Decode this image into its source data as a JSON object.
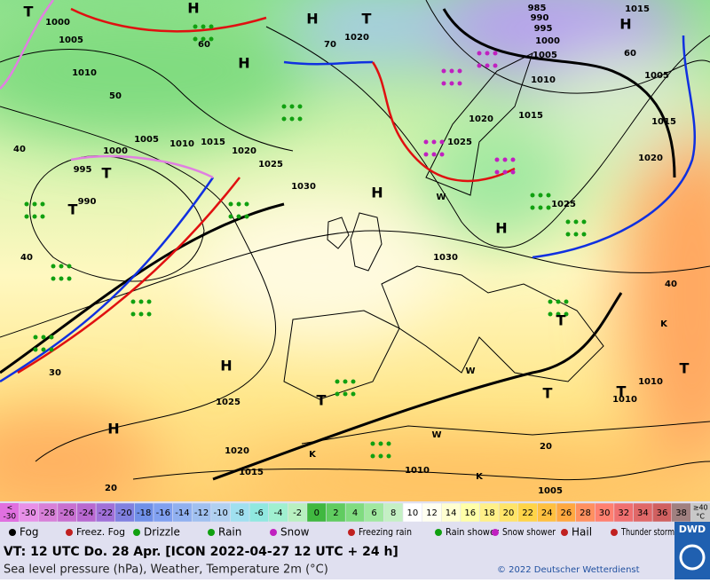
{
  "map": {
    "labels": [
      "1000",
      "1005",
      "1010",
      "50",
      "40",
      "1005",
      "1010",
      "1015",
      "1020",
      "1025",
      "1030",
      "1000",
      "995",
      "990",
      "40",
      "1030",
      "1025",
      "1020",
      "1015",
      "1005",
      "1010",
      "1015",
      "1020",
      "1025",
      "1020",
      "985",
      "990",
      "995",
      "1000",
      "1005",
      "1015",
      "1025",
      "1020",
      "1015",
      "1010",
      "1005",
      "1010",
      "1010",
      "40",
      "60",
      "70",
      "60",
      "30",
      "20",
      "20",
      "K",
      "K",
      "K",
      "W",
      "W",
      "W"
    ],
    "systems": [
      "H",
      "H",
      "T",
      "H",
      "T",
      "H",
      "T",
      "T",
      "H",
      "H",
      "T",
      "H",
      "T",
      "H",
      "T",
      "T",
      "T"
    ]
  },
  "scale": {
    "low": [
      "<",
      "-30"
    ],
    "high": [
      "≥40",
      "°C"
    ],
    "cells": [
      {
        "label": "-30",
        "color": "#e890e8"
      },
      {
        "label": "-28",
        "color": "#d880d8"
      },
      {
        "label": "-26",
        "color": "#c870d0"
      },
      {
        "label": "-24",
        "color": "#b868d0"
      },
      {
        "label": "-22",
        "color": "#a070d8"
      },
      {
        "label": "-20",
        "color": "#8080e0"
      },
      {
        "label": "-18",
        "color": "#7090e8"
      },
      {
        "label": "-16",
        "color": "#80a0f0"
      },
      {
        "label": "-14",
        "color": "#90b0f0"
      },
      {
        "label": "-12",
        "color": "#a0c0f0"
      },
      {
        "label": "-10",
        "color": "#b0d0f0"
      },
      {
        "label": "-8",
        "color": "#a0e0f0"
      },
      {
        "label": "-6",
        "color": "#90e8e0"
      },
      {
        "label": "-4",
        "color": "#a0f0d0"
      },
      {
        "label": "-2",
        "color": "#b8f0c0"
      },
      {
        "label": "0",
        "color": "#40b840"
      },
      {
        "label": "2",
        "color": "#60cc60"
      },
      {
        "label": "4",
        "color": "#80dc80"
      },
      {
        "label": "6",
        "color": "#a0e8a0"
      },
      {
        "label": "8",
        "color": "#c4f0c4"
      },
      {
        "label": "10",
        "color": "#ffffff"
      },
      {
        "label": "12",
        "color": "#fffff0"
      },
      {
        "label": "14",
        "color": "#ffffd0"
      },
      {
        "label": "16",
        "color": "#ffffa8"
      },
      {
        "label": "18",
        "color": "#fff088"
      },
      {
        "label": "20",
        "color": "#ffe468"
      },
      {
        "label": "22",
        "color": "#ffd448"
      },
      {
        "label": "24",
        "color": "#ffc040"
      },
      {
        "label": "26",
        "color": "#ffa840"
      },
      {
        "label": "28",
        "color": "#ff9060"
      },
      {
        "label": "30",
        "color": "#ff8070"
      },
      {
        "label": "32",
        "color": "#f07070"
      },
      {
        "label": "34",
        "color": "#e06868"
      },
      {
        "label": "36",
        "color": "#d06060"
      },
      {
        "label": "38",
        "color": "#a08080"
      }
    ]
  },
  "symbols": [
    "Fog",
    "Freez. Fog",
    "Drizzle",
    "Rain",
    "Snow",
    "Freezing rain",
    "Rain shower",
    "Snow shower",
    "Hail",
    "Thunder storm"
  ],
  "footer": {
    "valid": "VT: 12 UTC Do.  28 Apr. [ICON 2022-04-27  12 UTC + 24 h]",
    "subtitle": "Sea level pressure (hPa), Weather, Temperature 2m (°C)",
    "copyright": "© 2022 Deutscher Wetterdienst",
    "logo": "DWD"
  }
}
